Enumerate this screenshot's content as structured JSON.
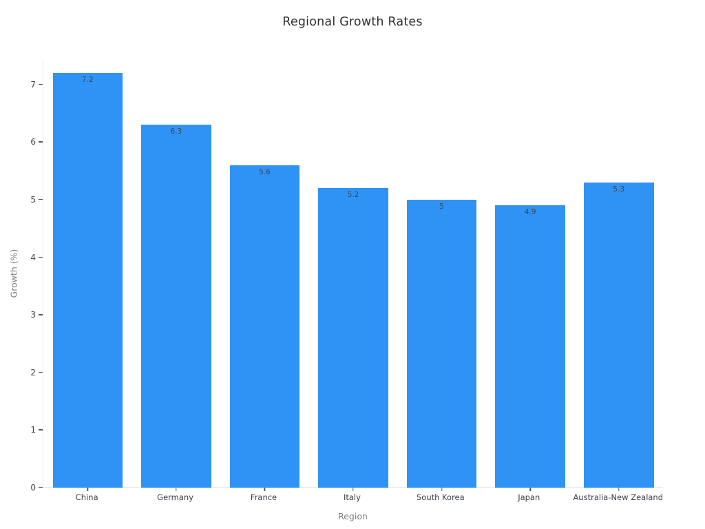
{
  "chart_data": {
    "type": "bar",
    "title": "Regional Growth Rates",
    "xlabel": "Region",
    "ylabel": "Growth (%)",
    "categories": [
      "China",
      "Germany",
      "France",
      "Italy",
      "South Korea",
      "Japan",
      "Australia-New Zealand"
    ],
    "values": [
      7.2,
      6.3,
      5.6,
      5.2,
      5,
      4.9,
      5.3
    ],
    "bar_labels": [
      "7.2",
      "6.3",
      "5.6",
      "5.2",
      "5",
      "4.9",
      "5.3"
    ],
    "yticks": [
      0,
      1,
      2,
      3,
      4,
      5,
      6,
      7
    ],
    "ylim": [
      0,
      7.44
    ],
    "grid": false,
    "legend": "none",
    "colors": {
      "bar": "#2e93f5",
      "title_text": "#2f2f2f",
      "tick_label": "#3b3f45",
      "axis_title": "#7f7f7f",
      "axis_line": "#e8e8e8",
      "bar_label": "#41464d"
    }
  }
}
